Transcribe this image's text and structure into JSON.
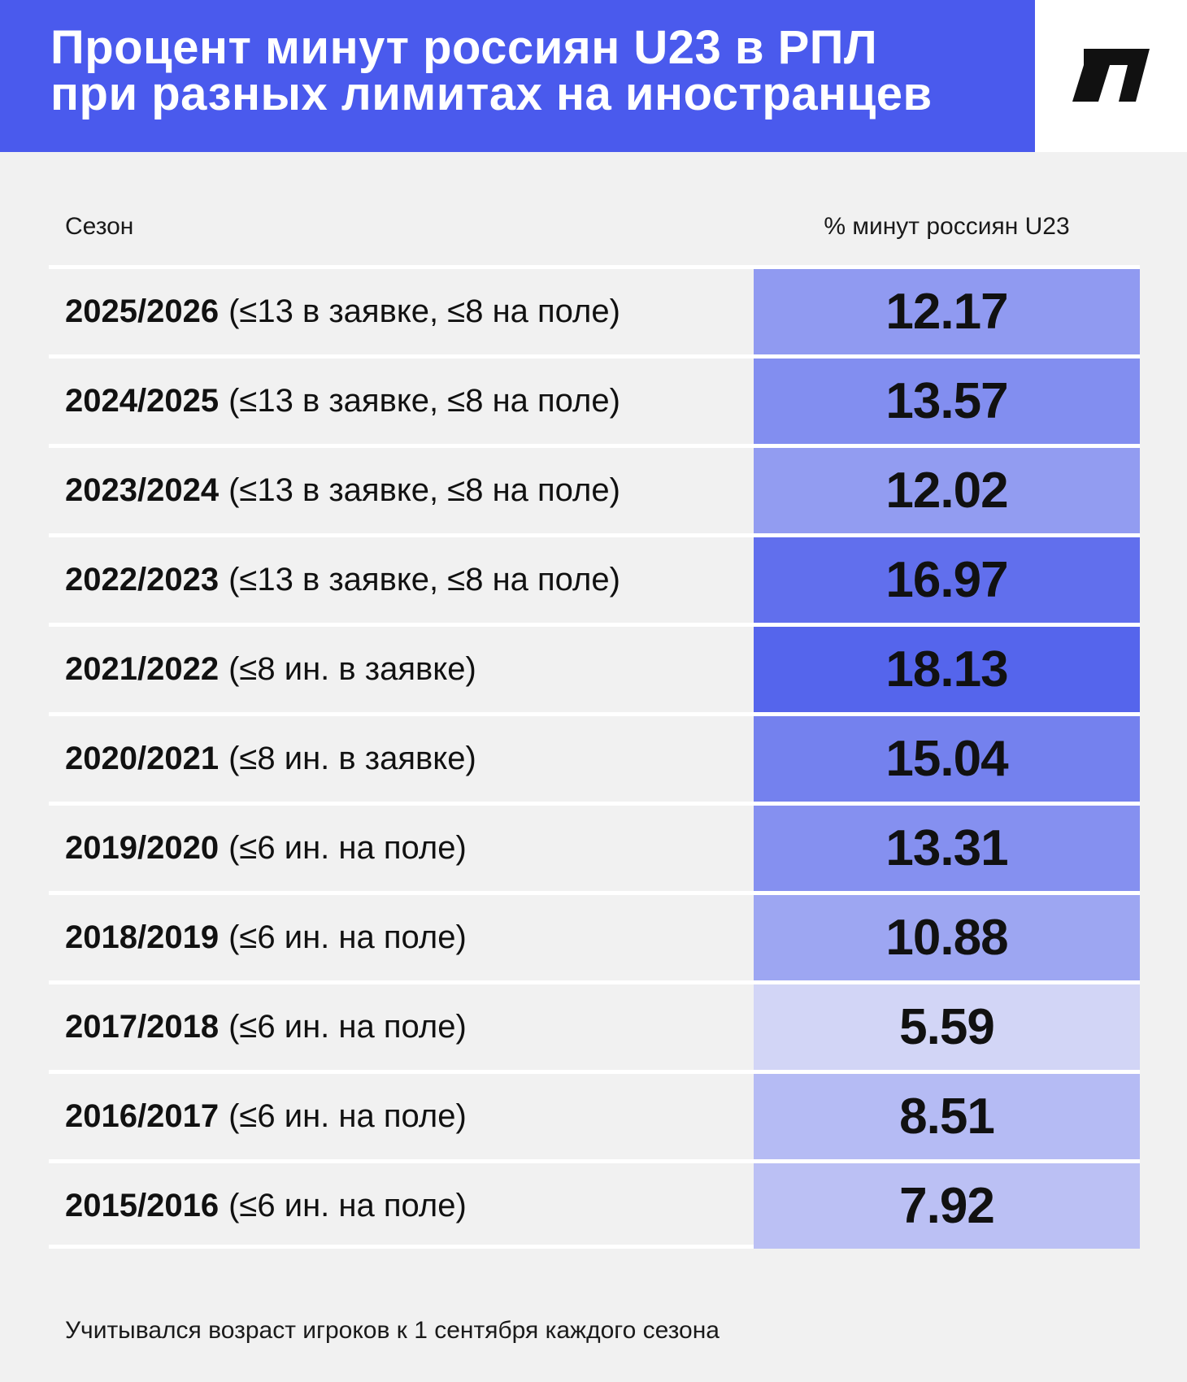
{
  "header": {
    "title_line1": "Процент минут россиян U23 в РПЛ",
    "title_line2": "при разных лимитах на иностранцев"
  },
  "logo": {
    "icon": "brand-logo-icon"
  },
  "columns": {
    "season": "Сезон",
    "value": "% минут россиян U23"
  },
  "colors": {
    "header_bg": "#4a5aed",
    "cell_lightest": "#d2d5f6",
    "cell_darkest": "#5565ec"
  },
  "chart_data": {
    "type": "table",
    "title": "Процент минут россиян U23 в РПЛ при разных лимитах на иностранцев",
    "columns": [
      "Сезон",
      "% минут россиян U23"
    ],
    "rows": [
      {
        "season": "2025/2026",
        "limit": "(≤13 в заявке, ≤8 на поле)",
        "value": "12.17"
      },
      {
        "season": "2024/2025",
        "limit": "(≤13 в заявке, ≤8 на поле)",
        "value": "13.57"
      },
      {
        "season": "2023/2024",
        "limit": "(≤13 в заявке, ≤8 на поле)",
        "value": "12.02"
      },
      {
        "season": "2022/2023",
        "limit": "(≤13 в заявке, ≤8 на поле)",
        "value": "16.97"
      },
      {
        "season": "2021/2022",
        "limit": "(≤8 ин. в заявке)",
        "value": "18.13"
      },
      {
        "season": "2020/2021",
        "limit": "(≤8 ин. в заявке)",
        "value": "15.04"
      },
      {
        "season": "2019/2020",
        "limit": "(≤6 ин. на поле)",
        "value": "13.31"
      },
      {
        "season": "2018/2019",
        "limit": "(≤6 ин. на поле)",
        "value": "10.88"
      },
      {
        "season": "2017/2018",
        "limit": "(≤6 ин. на поле)",
        "value": "5.59"
      },
      {
        "season": "2016/2017",
        "limit": "(≤6 ин. на поле)",
        "value": "8.51"
      },
      {
        "season": "2015/2016",
        "limit": "(≤6 ин. на поле)",
        "value": "7.92"
      }
    ]
  },
  "footnote": "Учитывался возраст игроков к 1 сентября каждого сезона"
}
